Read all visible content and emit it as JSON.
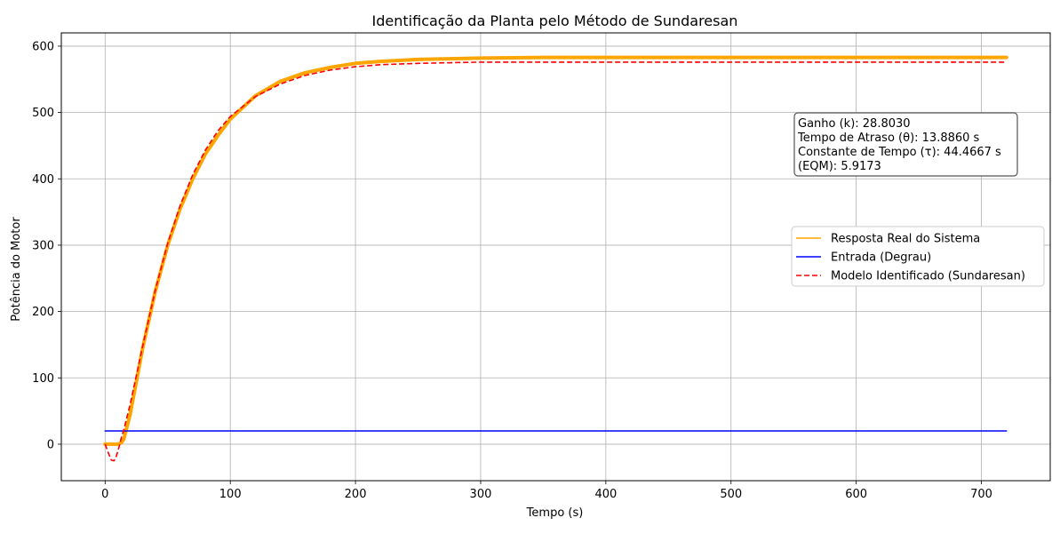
{
  "chart_data": {
    "type": "line",
    "title": "Identificação da Planta pelo Método de Sundaresan",
    "xlabel": "Tempo (s)",
    "ylabel": "Potência do Motor",
    "xlim": [
      -35,
      755
    ],
    "ylim": [
      -55,
      620
    ],
    "xticks": [
      0,
      100,
      200,
      300,
      400,
      500,
      600,
      700
    ],
    "yticks": [
      0,
      100,
      200,
      300,
      400,
      500,
      600
    ],
    "grid": true,
    "legend_position": "center-right",
    "series": [
      {
        "name": "Resposta Real do Sistema",
        "color": "#ffa500",
        "style": "solid",
        "x": [
          0,
          10,
          13,
          15,
          20,
          30,
          40,
          50,
          60,
          70,
          80,
          90,
          100,
          120,
          140,
          160,
          180,
          200,
          220,
          250,
          300,
          350,
          400,
          500,
          600,
          720
        ],
        "y": [
          0,
          0,
          2,
          8,
          45,
          145,
          230,
          300,
          355,
          400,
          437,
          465,
          490,
          525,
          547,
          560,
          568,
          574,
          577,
          580,
          582,
          583,
          583,
          583,
          583,
          583
        ]
      },
      {
        "name": "Entrada (Degrau)",
        "color": "#0000ff",
        "style": "solid",
        "x": [
          0,
          720
        ],
        "y": [
          20,
          20
        ]
      },
      {
        "name": "Modelo Identificado (Sundaresan)",
        "color": "#ff0000",
        "style": "dashed",
        "x": [
          0,
          3,
          5,
          7,
          9,
          11,
          13,
          15,
          20,
          30,
          40,
          50,
          60,
          70,
          80,
          90,
          100,
          120,
          140,
          160,
          180,
          200,
          220,
          250,
          300,
          400,
          500,
          600,
          720
        ],
        "y": [
          0,
          -15,
          -24,
          -25,
          -18,
          -5,
          10,
          22,
          60,
          148,
          232,
          303,
          360,
          406,
          443,
          472,
          494,
          524,
          543,
          556,
          564,
          569,
          572,
          574,
          576,
          576,
          576,
          576,
          576
        ]
      }
    ],
    "annotation": {
      "lines": [
        "Ganho (k): 28.8030",
        "Tempo de Atraso (θ): 13.8860 s",
        "Constante de Tempo (τ): 44.4667 s",
        "(EQM): 5.9173"
      ]
    }
  }
}
